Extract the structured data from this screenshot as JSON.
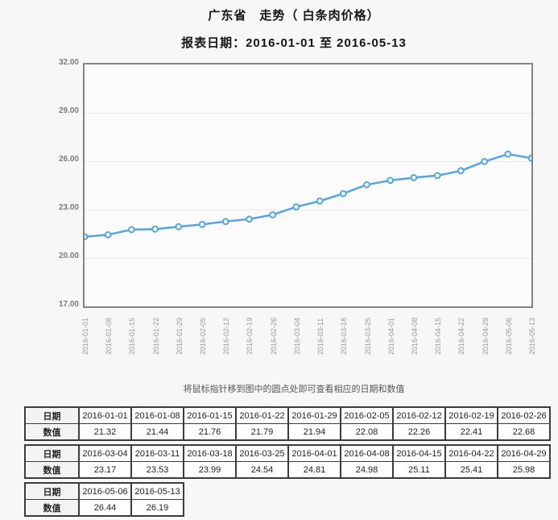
{
  "page": {
    "title": "广东省　走势（ 白条肉价格）",
    "report_date_line": "报表日期：2016-01-01 至 2016-05-13",
    "hover_note": "将鼠标指针移到图中的圆点处即可查看相应的日期和数值"
  },
  "colors": {
    "page_bg": "#f7f7f7",
    "plot_bg": "#fbfbfb",
    "plot_border": "#848484",
    "grid": "#e8e8e8",
    "line": "#55a3e8",
    "marker_fill": "#ffffff",
    "table_border": "#3c3c3c"
  },
  "chart_data": {
    "type": "line",
    "title": "广东省 走势（白条肉价格）",
    "xlabel": "",
    "ylabel": "",
    "x": [
      "2016-01-01",
      "2016-01-08",
      "2016-01-15",
      "2016-01-22",
      "2016-01-29",
      "2016-02-05",
      "2016-02-12",
      "2016-02-19",
      "2016-02-26",
      "2016-03-04",
      "2016-03-11",
      "2016-03-18",
      "2016-03-25",
      "2016-04-01",
      "2016-04-08",
      "2016-04-15",
      "2016-04-22",
      "2016-04-29",
      "2016-05-06",
      "2016-05-13"
    ],
    "values": [
      21.32,
      21.44,
      21.76,
      21.79,
      21.94,
      22.08,
      22.26,
      22.41,
      22.68,
      23.17,
      23.53,
      23.99,
      24.54,
      24.81,
      24.98,
      25.11,
      25.41,
      25.98,
      26.44,
      26.19
    ],
    "ylim": [
      17,
      32
    ],
    "ytick_labels": [
      "32.00",
      "29.00",
      "26.00",
      "23.00",
      "20.00",
      "17.00"
    ],
    "grid": true,
    "legend": false,
    "marker": "circle"
  },
  "tables": {
    "date_label": "日期",
    "value_label": "数值",
    "chunks": [
      9,
      9,
      2
    ]
  }
}
